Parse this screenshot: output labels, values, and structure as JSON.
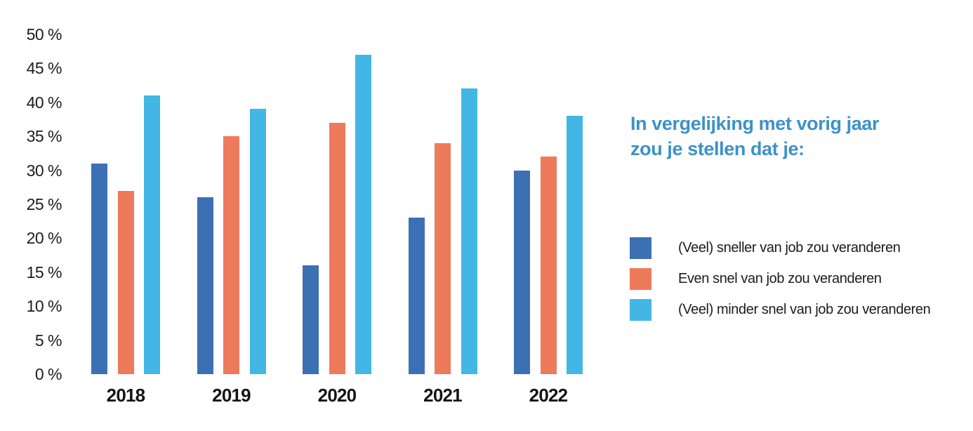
{
  "side_panel": {
    "title_lines": [
      "In vergelijking met vorig jaar",
      "zou je stellen dat je:"
    ],
    "title_color": "#3c92c8"
  },
  "chart_data": {
    "type": "bar",
    "title": "In vergelijking met vorig jaar zou je stellen dat je:",
    "categories": [
      "2018",
      "2019",
      "2020",
      "2021",
      "2022"
    ],
    "series": [
      {
        "name": "(Veel) sneller van job zou veranderen",
        "color": "#3c70b4",
        "values": [
          31,
          26,
          16,
          23,
          30
        ]
      },
      {
        "name": "Even snel van job zou veranderen",
        "color": "#ee7a5c",
        "values": [
          27,
          35,
          37,
          34,
          32
        ]
      },
      {
        "name": "(Veel) minder snel van job zou veranderen",
        "color": "#42b7e5",
        "values": [
          41,
          39,
          47,
          42,
          38
        ]
      }
    ],
    "xlabel": "",
    "ylabel": "",
    "ylim": [
      0,
      50
    ],
    "ytick_step": 5,
    "ytick_suffix": " %",
    "grid": false,
    "legend_position": "right"
  }
}
